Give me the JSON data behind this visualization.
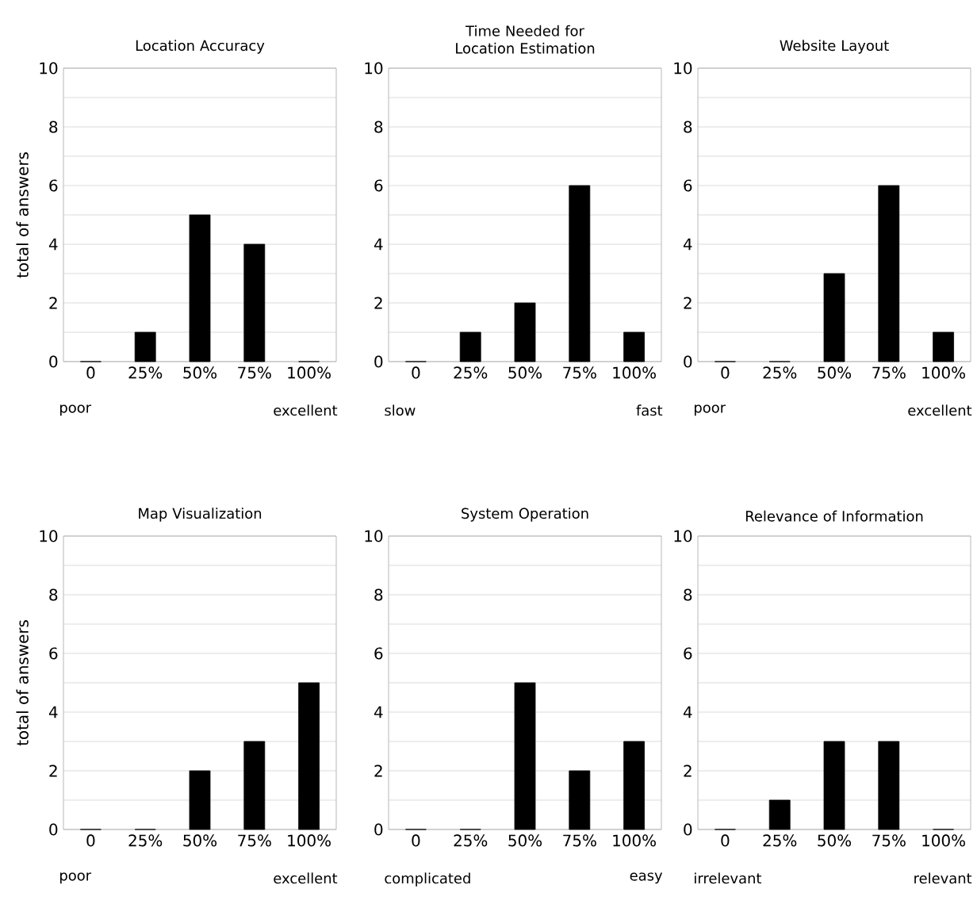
{
  "chart_data": [
    {
      "type": "bar",
      "title": "Location Accuracy",
      "ylabel": "total of answers",
      "categories": [
        "0",
        "25%",
        "50%",
        "75%",
        "100%"
      ],
      "values": [
        0,
        1,
        5,
        4,
        0
      ],
      "color": "#000000",
      "ylim": [
        0,
        10
      ],
      "yticks": [
        0,
        {
          "value": 1,
          "label": null
        },
        2,
        {
          "value": 3,
          "label": null
        },
        4,
        {
          "value": 5,
          "label": null
        },
        6,
        {
          "value": 7,
          "label": null
        },
        8,
        {
          "value": 9,
          "label": null
        },
        10
      ],
      "grid": "y",
      "annotations": [
        "poor",
        "excellent"
      ]
    },
    {
      "type": "bar",
      "title": "Time Needed for Location Estimation",
      "categories": [
        "0",
        "25%",
        "50%",
        "75%",
        "100%"
      ],
      "values": [
        0,
        1,
        2,
        6,
        1
      ],
      "color": "#000000",
      "ylim": [
        0,
        10
      ],
      "yticks": [
        0,
        {
          "value": 1,
          "label": null
        },
        2,
        {
          "value": 3,
          "label": null
        },
        4,
        {
          "value": 5,
          "label": null
        },
        6,
        {
          "value": 7,
          "label": null
        },
        8,
        {
          "value": 9,
          "label": null
        },
        10
      ],
      "grid": "y",
      "annotations": [
        "slow",
        "fast"
      ]
    },
    {
      "type": "bar",
      "title": "Website Layout",
      "categories": [
        "0",
        "25%",
        "50%",
        "75%",
        "100%"
      ],
      "values": [
        0,
        0,
        3,
        6,
        1
      ],
      "color": "#000000",
      "ylim": [
        0,
        10
      ],
      "yticks": [
        0,
        {
          "value": 1,
          "label": null
        },
        2,
        {
          "value": 3,
          "label": null
        },
        4,
        {
          "value": 5,
          "label": null
        },
        6,
        {
          "value": 7,
          "label": null
        },
        8,
        {
          "value": 9,
          "label": null
        },
        10
      ],
      "grid": "y",
      "annotations": [
        "poor",
        "excellent"
      ]
    },
    {
      "type": "bar",
      "title": "Map Visualization",
      "ylabel": "total of answers",
      "categories": [
        "0",
        "25%",
        "50%",
        "75%",
        "100%"
      ],
      "values": [
        0,
        0,
        2,
        3,
        5
      ],
      "color": "#000000",
      "ylim": [
        0,
        10
      ],
      "yticks": [
        0,
        {
          "value": 1,
          "label": null
        },
        2,
        {
          "value": 3,
          "label": null
        },
        4,
        {
          "value": 5,
          "label": null
        },
        6,
        {
          "value": 7,
          "label": null
        },
        8,
        {
          "value": 9,
          "label": null
        },
        10
      ],
      "grid": "y",
      "annotations": [
        "poor",
        "excellent"
      ]
    },
    {
      "type": "bar",
      "title": "System Operation",
      "categories": [
        "0",
        "25%",
        "50%",
        "75%",
        "100%"
      ],
      "values": [
        0,
        0,
        5,
        2,
        3
      ],
      "color": "#000000",
      "ylim": [
        0,
        10
      ],
      "yticks": [
        0,
        {
          "value": 1,
          "label": null
        },
        2,
        {
          "value": 3,
          "label": null
        },
        4,
        {
          "value": 5,
          "label": null
        },
        6,
        {
          "value": 7,
          "label": null
        },
        8,
        {
          "value": 9,
          "label": null
        },
        10
      ],
      "grid": "y",
      "annotations": [
        "complicated",
        "easy"
      ]
    },
    {
      "type": "bar",
      "title": "Relevance of Information",
      "categories": [
        "0",
        "25%",
        "50%",
        "75%",
        "100%"
      ],
      "values": [
        0,
        1,
        3,
        3,
        0
      ],
      "color": "#000000",
      "ylim": [
        0,
        10
      ],
      "yticks": [
        0,
        {
          "value": 1,
          "label": null
        },
        2,
        {
          "value": 3,
          "label": null
        },
        4,
        {
          "value": 5,
          "label": null
        },
        6,
        {
          "value": 7,
          "label": null
        },
        8,
        {
          "value": 9,
          "label": null
        },
        10
      ],
      "grid": "y",
      "annotations": [
        "irrelevant",
        "relevant"
      ]
    }
  ]
}
